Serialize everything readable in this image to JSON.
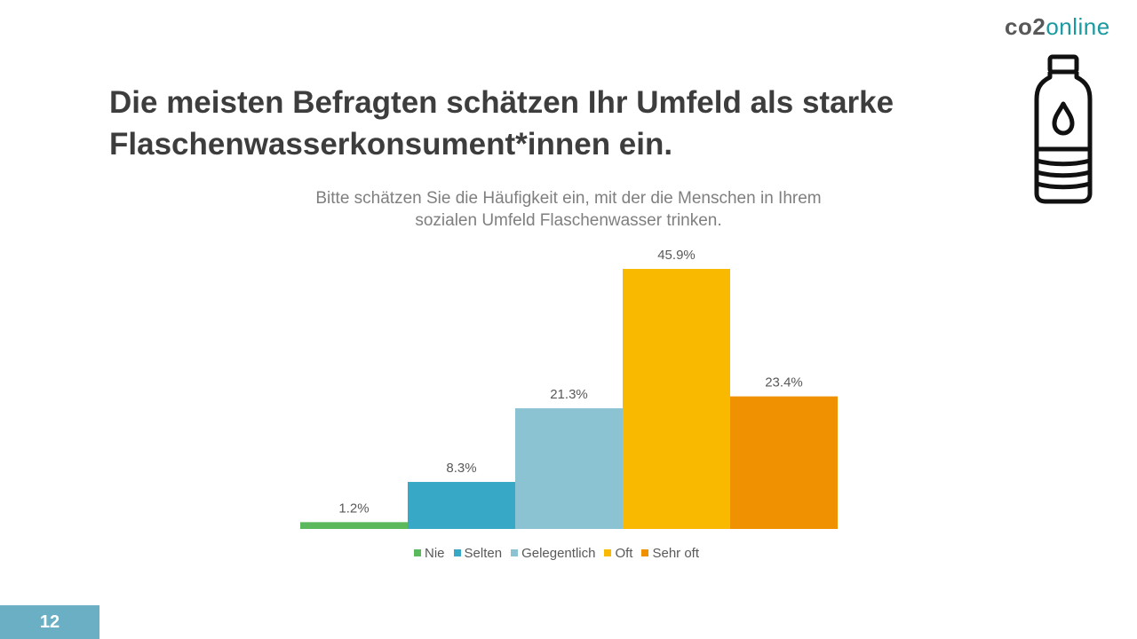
{
  "logo": {
    "part1": "co2",
    "part2": "online"
  },
  "icon": "water-bottle-icon",
  "title_line1": "Die meisten Befragten schätzen Ihr Umfeld als starke",
  "title_line2": "Flaschenwasserkonsument*innen ein.",
  "page_number": "12",
  "colors": {
    "title": "#3d3d3d",
    "brand_teal": "#1a9aa0",
    "page_badge": "#6aafc3"
  },
  "chart_data": {
    "type": "bar",
    "title_line1": "Bitte schätzen Sie die Häufigkeit ein, mit der die Menschen in Ihrem",
    "title_line2": "sozialen Umfeld Flaschenwasser trinken.",
    "categories": [
      "Nie",
      "Selten",
      "Gelegentlich",
      "Oft",
      "Sehr oft"
    ],
    "values": [
      1.2,
      8.3,
      21.3,
      45.9,
      23.4
    ],
    "value_labels": [
      "1.2%",
      "8.3%",
      "21.3%",
      "45.9%",
      "23.4%"
    ],
    "colors": [
      "#5cb85c",
      "#37a9c6",
      "#8bc3d3",
      "#f8b900",
      "#ef9100"
    ],
    "unit": "%",
    "ylim": [
      0,
      45.9
    ],
    "grid": false,
    "legend": "bottom"
  }
}
